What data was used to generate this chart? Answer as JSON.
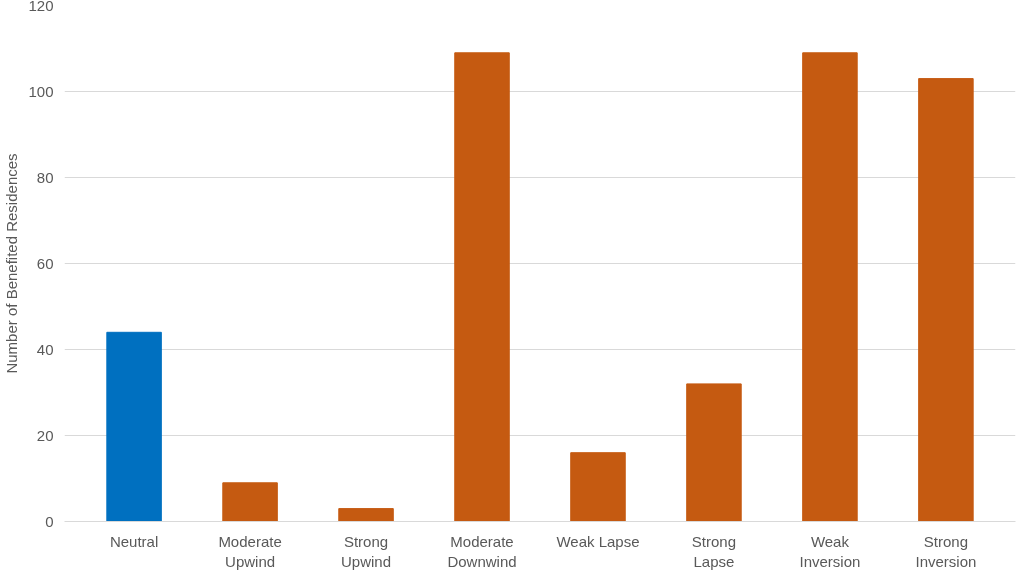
{
  "chart_data": {
    "type": "bar",
    "ylabel": "Number of Benefited Residences",
    "categories": [
      "Neutral",
      "Moderate Upwind",
      "Strong Upwind",
      "Moderate Downwind",
      "Weak Lapse",
      "Strong Lapse",
      "Weak Inversion",
      "Strong Inversion"
    ],
    "values": [
      44,
      9,
      3,
      109,
      16,
      32,
      109,
      103
    ],
    "colors": [
      "#0070c0",
      "#c55a11",
      "#c55a11",
      "#c55a11",
      "#c55a11",
      "#c55a11",
      "#c55a11",
      "#c55a11"
    ],
    "ylim": [
      0,
      120
    ],
    "yticks": [
      0,
      20,
      40,
      60,
      80,
      100,
      120
    ],
    "grid": "y"
  }
}
